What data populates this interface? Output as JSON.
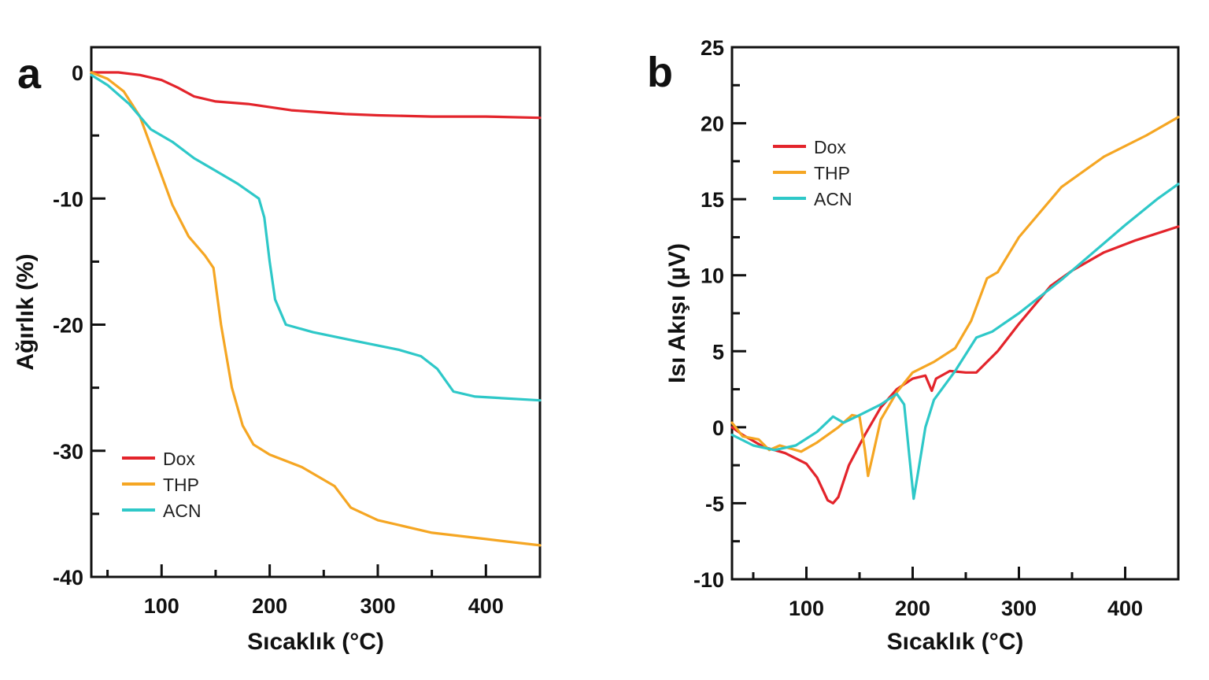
{
  "colors": {
    "Dox": "#e3242b",
    "THP": "#f5a623",
    "ACN": "#2ec8c8"
  },
  "chart_data": [
    {
      "type": "line",
      "panel_label": "a",
      "xlabel": "Sıcaklık (°C)",
      "xlabel_main": "Sıcaklık (",
      "xlabel_sup": "o",
      "xlabel_end": "C)",
      "ylabel": "Ağırlık (%)",
      "xlim": [
        35,
        450
      ],
      "ylim": [
        -40,
        2
      ],
      "xticks": [
        100,
        200,
        300,
        400
      ],
      "yticks": [
        0,
        -10,
        -20,
        -30,
        -40
      ],
      "legend_position": "bottom-left",
      "grid": false,
      "series": [
        {
          "name": "Dox",
          "points": [
            [
              35,
              0
            ],
            [
              60,
              0
            ],
            [
              80,
              -0.2
            ],
            [
              100,
              -0.6
            ],
            [
              115,
              -1.2
            ],
            [
              130,
              -1.9
            ],
            [
              150,
              -2.3
            ],
            [
              180,
              -2.5
            ],
            [
              220,
              -3.0
            ],
            [
              270,
              -3.3
            ],
            [
              300,
              -3.4
            ],
            [
              350,
              -3.5
            ],
            [
              400,
              -3.5
            ],
            [
              450,
              -3.6
            ]
          ]
        },
        {
          "name": "THP",
          "points": [
            [
              35,
              0
            ],
            [
              50,
              -0.5
            ],
            [
              65,
              -1.5
            ],
            [
              80,
              -3.5
            ],
            [
              95,
              -7
            ],
            [
              110,
              -10.5
            ],
            [
              125,
              -13
            ],
            [
              140,
              -14.5
            ],
            [
              148,
              -15.5
            ],
            [
              155,
              -20
            ],
            [
              165,
              -25
            ],
            [
              175,
              -28
            ],
            [
              185,
              -29.5
            ],
            [
              200,
              -30.3
            ],
            [
              230,
              -31.3
            ],
            [
              260,
              -32.8
            ],
            [
              275,
              -34.5
            ],
            [
              300,
              -35.5
            ],
            [
              350,
              -36.5
            ],
            [
              400,
              -37
            ],
            [
              450,
              -37.5
            ]
          ]
        },
        {
          "name": "ACN",
          "points": [
            [
              35,
              -0.2
            ],
            [
              50,
              -1
            ],
            [
              70,
              -2.5
            ],
            [
              90,
              -4.5
            ],
            [
              110,
              -5.5
            ],
            [
              130,
              -6.8
            ],
            [
              150,
              -7.8
            ],
            [
              170,
              -8.8
            ],
            [
              190,
              -10
            ],
            [
              195,
              -11.5
            ],
            [
              200,
              -15
            ],
            [
              205,
              -18
            ],
            [
              215,
              -20
            ],
            [
              240,
              -20.6
            ],
            [
              280,
              -21.3
            ],
            [
              320,
              -22
            ],
            [
              340,
              -22.5
            ],
            [
              355,
              -23.5
            ],
            [
              370,
              -25.3
            ],
            [
              390,
              -25.7
            ],
            [
              450,
              -26
            ]
          ]
        }
      ]
    },
    {
      "type": "line",
      "panel_label": "b",
      "xlabel": "Sıcaklık (°C)",
      "xlabel_main": "Sıcaklık (",
      "xlabel_sup": "o",
      "xlabel_end": "C)",
      "ylabel": "Isı Akışı (µV)",
      "xlim": [
        30,
        450
      ],
      "ylim": [
        -10,
        25
      ],
      "xticks": [
        100,
        200,
        300,
        400
      ],
      "yticks": [
        25,
        20,
        15,
        10,
        5,
        0,
        -5,
        -10
      ],
      "legend_position": "top-left",
      "grid": false,
      "series": [
        {
          "name": "Dox",
          "points": [
            [
              30,
              0
            ],
            [
              40,
              -0.5
            ],
            [
              60,
              -1.3
            ],
            [
              80,
              -1.7
            ],
            [
              100,
              -2.4
            ],
            [
              110,
              -3.3
            ],
            [
              120,
              -4.8
            ],
            [
              125,
              -5
            ],
            [
              130,
              -4.6
            ],
            [
              140,
              -2.5
            ],
            [
              155,
              -0.5
            ],
            [
              170,
              1.3
            ],
            [
              185,
              2.5
            ],
            [
              200,
              3.2
            ],
            [
              212,
              3.4
            ],
            [
              218,
              2.4
            ],
            [
              222,
              3.2
            ],
            [
              235,
              3.7
            ],
            [
              250,
              3.6
            ],
            [
              260,
              3.6
            ],
            [
              280,
              5
            ],
            [
              300,
              6.8
            ],
            [
              330,
              9.3
            ],
            [
              350,
              10.3
            ],
            [
              380,
              11.5
            ],
            [
              410,
              12.3
            ],
            [
              450,
              13.2
            ]
          ]
        },
        {
          "name": "THP",
          "points": [
            [
              30,
              0.3
            ],
            [
              40,
              -0.6
            ],
            [
              55,
              -0.8
            ],
            [
              65,
              -1.5
            ],
            [
              75,
              -1.2
            ],
            [
              95,
              -1.6
            ],
            [
              110,
              -1.0
            ],
            [
              130,
              0
            ],
            [
              143,
              0.8
            ],
            [
              150,
              0.7
            ],
            [
              155,
              -1.5
            ],
            [
              158,
              -3.2
            ],
            [
              162,
              -2
            ],
            [
              170,
              0.5
            ],
            [
              185,
              2.3
            ],
            [
              200,
              3.6
            ],
            [
              220,
              4.3
            ],
            [
              240,
              5.2
            ],
            [
              255,
              7
            ],
            [
              270,
              9.8
            ],
            [
              280,
              10.2
            ],
            [
              300,
              12.5
            ],
            [
              340,
              15.8
            ],
            [
              380,
              17.8
            ],
            [
              420,
              19.2
            ],
            [
              450,
              20.4
            ]
          ]
        },
        {
          "name": "ACN",
          "points": [
            [
              30,
              -0.5
            ],
            [
              50,
              -1.2
            ],
            [
              70,
              -1.5
            ],
            [
              90,
              -1.2
            ],
            [
              110,
              -0.3
            ],
            [
              125,
              0.7
            ],
            [
              135,
              0.3
            ],
            [
              150,
              0.8
            ],
            [
              170,
              1.5
            ],
            [
              185,
              2.2
            ],
            [
              192,
              1.5
            ],
            [
              197,
              -2
            ],
            [
              201,
              -4.7
            ],
            [
              205,
              -3
            ],
            [
              212,
              0
            ],
            [
              220,
              1.8
            ],
            [
              240,
              3.7
            ],
            [
              260,
              5.9
            ],
            [
              275,
              6.3
            ],
            [
              300,
              7.5
            ],
            [
              340,
              9.7
            ],
            [
              370,
              11.5
            ],
            [
              400,
              13.3
            ],
            [
              430,
              15
            ],
            [
              450,
              16
            ]
          ]
        }
      ]
    }
  ]
}
